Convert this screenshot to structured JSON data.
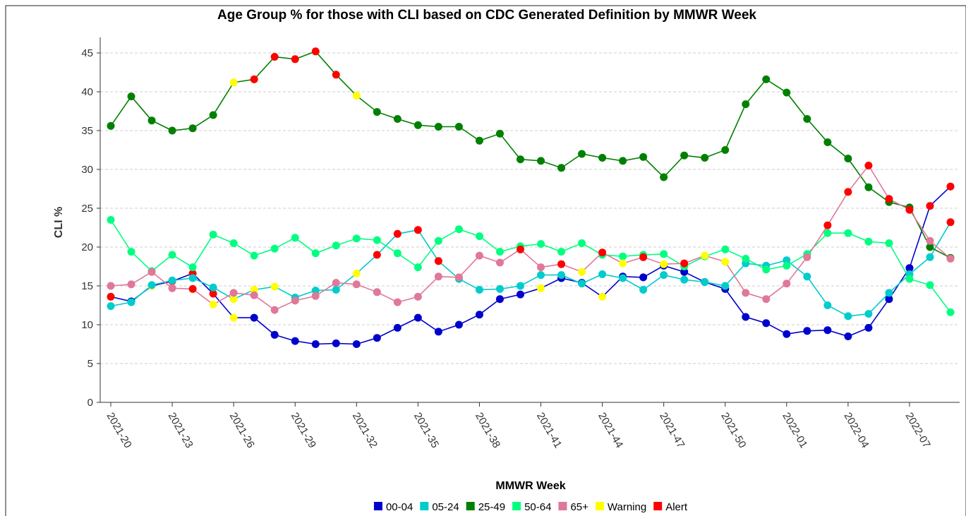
{
  "chart_data": {
    "type": "line",
    "title": "Age Group % for those with CLI based on CDC Generated Definition by MMWR Week",
    "x_label": "MMWR Week",
    "y_label": "CLI %",
    "categories": [
      "2021-20",
      null,
      null,
      "2021-23",
      null,
      null,
      "2021-26",
      null,
      null,
      "2021-29",
      null,
      null,
      "2021-32",
      null,
      null,
      "2021-35",
      null,
      null,
      "2021-38",
      null,
      null,
      "2021-41",
      null,
      null,
      "2021-44",
      null,
      null,
      "2021-47",
      null,
      null,
      "2021-50",
      null,
      null,
      "2022-01",
      null,
      null,
      "2022-04",
      null,
      null,
      "2022-07",
      null,
      null
    ],
    "ylim": [
      0,
      47
    ],
    "yticks": [
      0,
      5,
      10,
      15,
      20,
      25,
      30,
      35,
      40,
      45
    ],
    "grid": true,
    "flag_legend": [
      {
        "name": "Warning",
        "color": "#ffff00"
      },
      {
        "name": "Alert",
        "color": "#ff0000"
      }
    ],
    "series": [
      {
        "name": "00-04",
        "color": "#0000cc",
        "values": [
          13.6,
          13.0,
          15.0,
          15.6,
          16.6,
          14.0,
          10.9,
          10.9,
          8.7,
          7.9,
          7.5,
          7.6,
          7.5,
          8.3,
          9.6,
          10.9,
          9.1,
          10.0,
          11.3,
          13.3,
          13.9,
          14.7,
          16.0,
          15.4,
          13.6,
          16.2,
          16.1,
          17.6,
          16.8,
          15.5,
          14.6,
          11.0,
          10.2,
          8.8,
          9.2,
          9.3,
          8.5,
          9.6,
          13.3,
          17.3,
          25.3,
          27.8
        ],
        "flags": [
          1,
          null,
          0,
          1,
          1,
          1,
          0,
          null,
          null,
          null,
          null,
          null,
          null,
          null,
          null,
          null,
          null,
          null,
          null,
          null,
          null,
          0,
          null,
          null,
          0,
          null,
          null,
          null,
          null,
          null,
          null,
          null,
          null,
          null,
          null,
          null,
          null,
          null,
          null,
          null,
          1,
          1
        ]
      },
      {
        "name": "05-24",
        "color": "#00cccc",
        "values": [
          12.4,
          12.9,
          15.1,
          15.7,
          16.0,
          14.8,
          13.3,
          14.5,
          14.9,
          13.5,
          14.4,
          14.5,
          16.6,
          19.0,
          21.7,
          22.2,
          18.2,
          15.9,
          14.5,
          14.6,
          15.0,
          16.4,
          16.4,
          15.3,
          16.5,
          16.0,
          14.5,
          16.4,
          15.8,
          15.5,
          15.0,
          17.9,
          17.6,
          18.3,
          16.2,
          12.5,
          11.1,
          11.4,
          14.1,
          16.5,
          18.7,
          23.2
        ],
        "flags": [
          null,
          null,
          null,
          null,
          null,
          null,
          0,
          0,
          0,
          null,
          null,
          null,
          0,
          1,
          1,
          1,
          1,
          null,
          null,
          null,
          null,
          null,
          null,
          null,
          null,
          null,
          null,
          null,
          null,
          null,
          null,
          null,
          null,
          null,
          null,
          null,
          null,
          null,
          null,
          null,
          null,
          1
        ]
      },
      {
        "name": "25-49",
        "color": "#008000",
        "values": [
          35.6,
          39.4,
          36.3,
          35.0,
          35.3,
          37.0,
          41.2,
          41.6,
          44.5,
          44.2,
          45.2,
          42.2,
          39.5,
          37.4,
          36.5,
          35.7,
          35.5,
          35.5,
          33.7,
          34.6,
          31.3,
          31.1,
          30.2,
          32.0,
          31.5,
          31.1,
          31.6,
          29.0,
          31.8,
          31.5,
          32.5,
          38.4,
          41.6,
          39.9,
          36.5,
          33.5,
          31.4,
          27.7,
          25.8,
          25.1,
          20.0,
          18.6
        ],
        "flags": [
          null,
          null,
          null,
          null,
          null,
          null,
          0,
          1,
          1,
          1,
          1,
          1,
          0,
          null,
          null,
          null,
          null,
          null,
          null,
          null,
          null,
          null,
          null,
          null,
          null,
          null,
          null,
          null,
          null,
          null,
          null,
          null,
          null,
          null,
          null,
          null,
          null,
          null,
          null,
          null,
          null,
          null
        ]
      },
      {
        "name": "50-64",
        "color": "#00ff80",
        "values": [
          23.5,
          19.4,
          16.9,
          19.0,
          17.4,
          21.6,
          20.5,
          18.9,
          19.8,
          21.2,
          19.2,
          20.2,
          21.1,
          20.9,
          19.2,
          17.4,
          20.8,
          22.3,
          21.4,
          19.4,
          20.1,
          20.4,
          19.4,
          20.5,
          19.0,
          18.8,
          19.0,
          19.1,
          17.5,
          18.8,
          19.7,
          18.5,
          17.1,
          17.6,
          19.1,
          21.8,
          21.8,
          20.7,
          20.5,
          15.9,
          15.1,
          11.6
        ],
        "flags": [
          null,
          null,
          null,
          null,
          null,
          null,
          null,
          null,
          null,
          null,
          null,
          null,
          null,
          null,
          null,
          null,
          null,
          null,
          null,
          null,
          null,
          null,
          null,
          null,
          null,
          null,
          null,
          null,
          null,
          null,
          null,
          null,
          null,
          null,
          null,
          null,
          null,
          null,
          null,
          null,
          null,
          null
        ]
      },
      {
        "name": "65+",
        "color": "#e07898",
        "values": [
          15.0,
          15.2,
          16.8,
          14.7,
          14.6,
          12.6,
          14.1,
          13.8,
          11.9,
          13.1,
          13.7,
          15.4,
          15.2,
          14.2,
          12.9,
          13.6,
          16.2,
          16.1,
          18.9,
          18.0,
          19.7,
          17.4,
          17.8,
          16.8,
          19.3,
          17.9,
          18.7,
          17.8,
          17.9,
          18.9,
          18.1,
          14.1,
          13.3,
          15.3,
          18.7,
          22.8,
          27.1,
          30.5,
          26.2,
          24.8,
          20.8,
          18.5
        ],
        "flags": [
          null,
          null,
          null,
          null,
          1,
          0,
          null,
          null,
          null,
          null,
          null,
          null,
          null,
          null,
          null,
          null,
          null,
          null,
          null,
          null,
          1,
          null,
          1,
          0,
          1,
          0,
          1,
          0,
          1,
          0,
          0,
          null,
          null,
          null,
          null,
          1,
          1,
          1,
          1,
          1,
          null,
          null
        ]
      }
    ]
  }
}
